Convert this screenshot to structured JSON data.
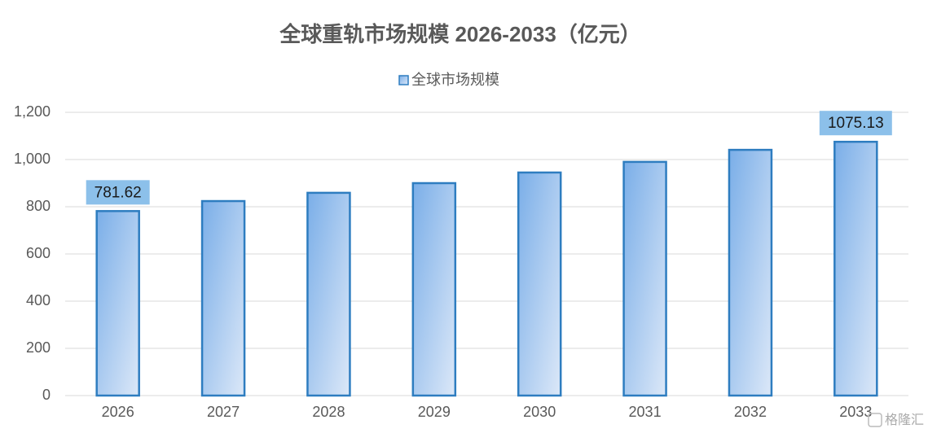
{
  "chart_data": {
    "type": "bar",
    "title": "全球重轨市场规模 2026-2033（亿元）",
    "categories": [
      "2026",
      "2027",
      "2028",
      "2029",
      "2030",
      "2031",
      "2032",
      "2033"
    ],
    "series": [
      {
        "name": "全球市场规模",
        "color": "#2e7dc0",
        "values": [
          781.62,
          824,
          859,
          900,
          945,
          990,
          1041,
          1075.13
        ],
        "value_labels": [
          "781.62",
          null,
          null,
          null,
          null,
          null,
          null,
          "1075.13"
        ]
      }
    ],
    "ylim": [
      0,
      1200
    ],
    "yticks": [
      0,
      200,
      400,
      600,
      800,
      {
        "value": 1000,
        "label": "1,000"
      },
      {
        "value": 1200,
        "label": "1,200"
      }
    ],
    "grid": true,
    "legend": "top"
  },
  "watermark": "格隆汇"
}
